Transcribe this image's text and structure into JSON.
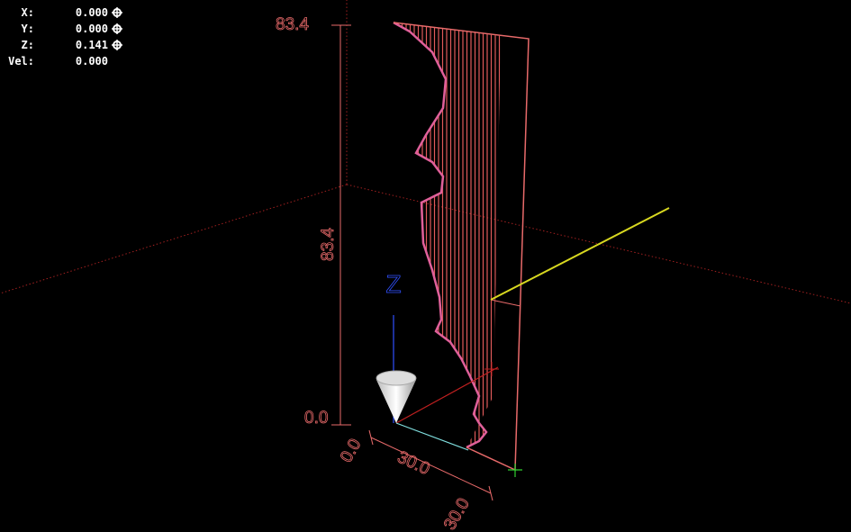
{
  "readout": {
    "rows": [
      {
        "label": "X:",
        "value": "0.000"
      },
      {
        "label": "Y:",
        "value": "0.000"
      },
      {
        "label": "Z:",
        "value": "0.141"
      },
      {
        "label": "Vel:",
        "value": "0.000"
      }
    ]
  },
  "dimensions": {
    "height_top": "83.4",
    "height_side": "83.4",
    "height_zero": "0.0",
    "x_zero": "0.0",
    "x_mid": "30.0",
    "x_end": "30.0"
  },
  "axis_label": "Z"
}
